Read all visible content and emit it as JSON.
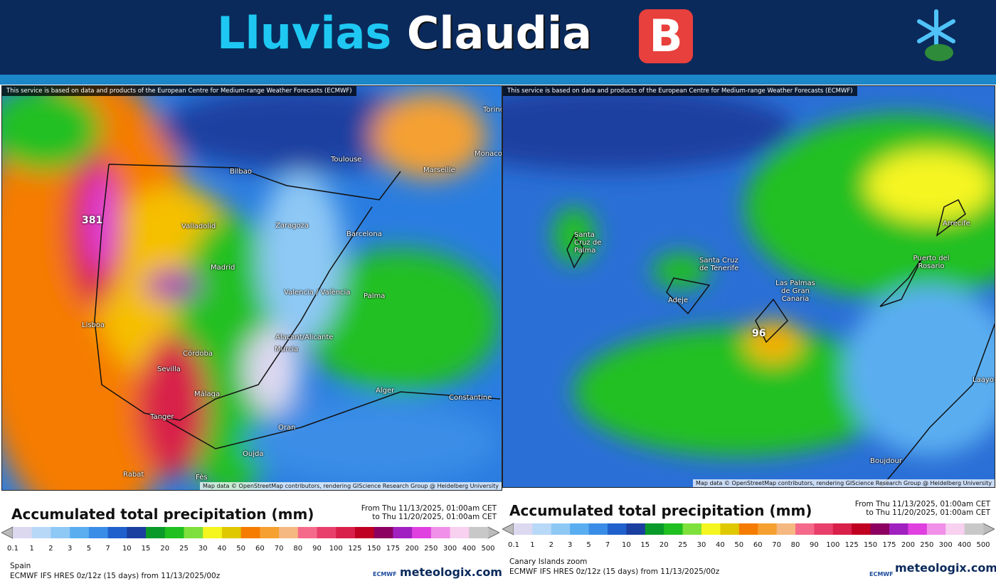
{
  "header": {
    "title_part1": "Lluvias",
    "title_part2": "Claudia",
    "badge": "B"
  },
  "legend": {
    "title": "Accumulated total precipitation (mm)",
    "labels": [
      "0.1",
      "1",
      "2",
      "3",
      "5",
      "7",
      "10",
      "15",
      "20",
      "25",
      "30",
      "40",
      "50",
      "60",
      "70",
      "80",
      "90",
      "100",
      "125",
      "150",
      "175",
      "200",
      "250",
      "300",
      "400",
      "500"
    ],
    "colors": [
      "#dcd8f0",
      "#b8d8f8",
      "#8ec8f5",
      "#5aaef0",
      "#3a8de6",
      "#2060cc",
      "#1b3fa0",
      "#0a9a2a",
      "#20c020",
      "#7ee03c",
      "#f5f520",
      "#e0c800",
      "#f57c00",
      "#f5a030",
      "#f5b880",
      "#f56a8a",
      "#e8406a",
      "#d8204a",
      "#c00020",
      "#8b0060",
      "#a020c0",
      "#e040e0",
      "#f090e8",
      "#f8d0f0",
      "#c8c8c8"
    ]
  },
  "panels": [
    {
      "attribution": "This service is based on data and products of the European Centre for Medium-range Weather Forecasts (ECMWF)",
      "map_credit": "Map data © OpenStreetMap contributors, rendering GIScience Research Group @ Heidelberg University",
      "max_label": "381",
      "places": [
        "Toulouse",
        "Monaco",
        "Marseille",
        "Torino",
        "Bilbao",
        "Valladolid",
        "Zaragoza",
        "Barcelona",
        "Madrid",
        "Valencia / València",
        "Palma",
        "Lisboa",
        "Alacant/Alicante",
        "Murcia",
        "Córdoba",
        "Sevilla",
        "Málaga",
        "Tanger",
        "Alger",
        "Constantine",
        "Oran",
        "Oujda",
        "Rabat",
        "Fès"
      ],
      "from": "From Thu 11/13/2025, 01:00am CET",
      "to": "to Thu 11/20/2025, 01:00am CET",
      "region": "Spain",
      "model": "ECMWF IFS HRES 0z/12z (15 days) from 11/13/2025/00z",
      "ecmwf": "ECMWF",
      "brand": "meteologix.com"
    },
    {
      "attribution": "This service is based on data and products of the European Centre for Medium-range Weather Forecasts (ECMWF)",
      "map_credit": "Map data © OpenStreetMap contributors, rendering GIScience Research Group @ Heidelberg University",
      "max_label": "96",
      "places": [
        "Santa Cruz de Palma",
        "Santa Cruz de Tenerife",
        "Adeje",
        "Las Palmas de Gran Canaria",
        "Arrecife",
        "Puerto del Rosario",
        "Boujdour",
        "Laayoune"
      ],
      "from": "From Thu 11/13/2025, 01:00am CET",
      "to": "to Thu 11/20/2025, 01:00am CET",
      "region": "Canary Islands zoom",
      "model": "ECMWF IFS HRES 0z/12z (15 days) from 11/13/2025/00z",
      "ecmwf": "ECMWF",
      "brand": "meteologix.com"
    }
  ]
}
